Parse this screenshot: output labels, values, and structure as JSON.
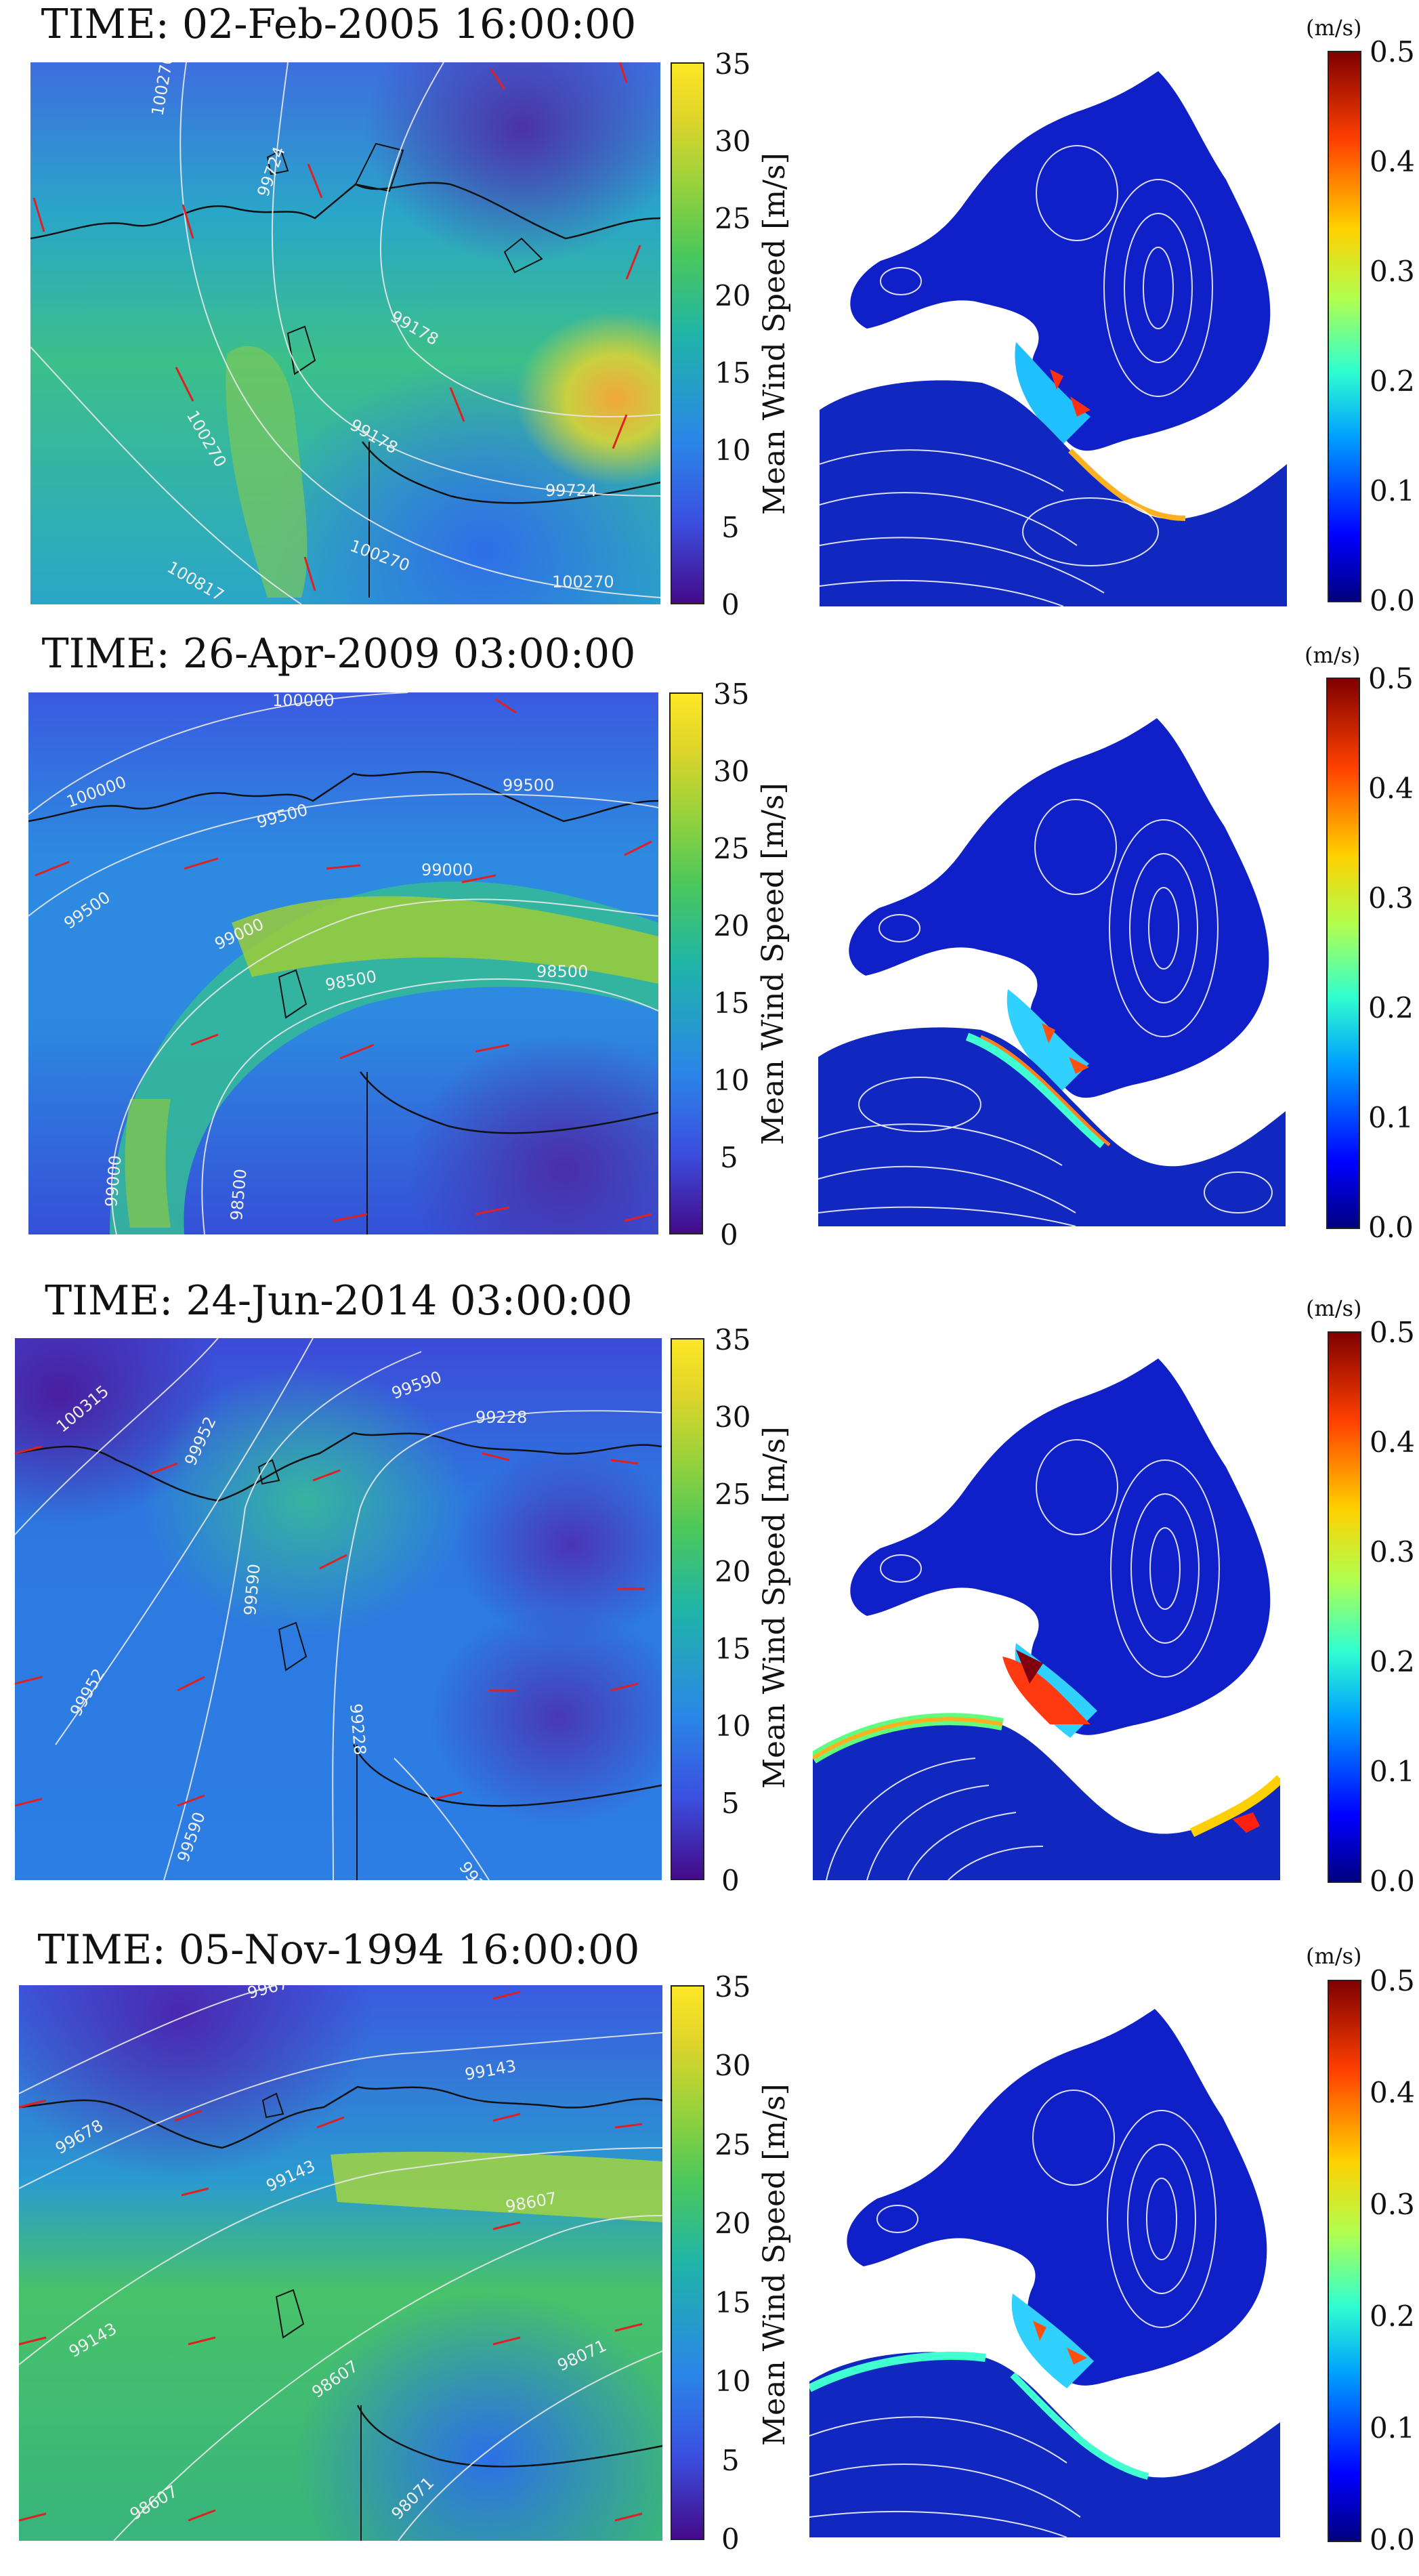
{
  "panels": [
    {
      "time_label": "TIME: 02-Feb-2005 16:00:00",
      "wind_colorbar_label": "Mean Wind Speed [m/s]",
      "current_unit": "(m/s)",
      "isobars": [
        "100270",
        "99724",
        "99178",
        "99724",
        "100270",
        "100817",
        "100270",
        "99724",
        "99178"
      ],
      "current_pattern": "calm"
    },
    {
      "time_label": "TIME: 26-Apr-2009 03:00:00",
      "wind_colorbar_label": "Mean Wind Speed [m/s]",
      "current_unit": "(m/s)",
      "isobars": [
        "100000",
        "100000",
        "99500",
        "99500",
        "99000",
        "99000",
        "98500",
        "98500",
        "99500",
        "99000",
        "98500"
      ],
      "current_pattern": "moderate"
    },
    {
      "time_label": "TIME: 24-Jun-2014 03:00:00",
      "wind_colorbar_label": "Mean Wind Speed [m/s]",
      "current_unit": "(m/s)",
      "isobars": [
        "100315",
        "99952",
        "99590",
        "99228",
        "99590",
        "99228",
        "99952",
        "99590",
        "99228"
      ],
      "current_pattern": "strong"
    },
    {
      "time_label": "TIME: 05-Nov-1994 16:00:00",
      "wind_colorbar_label": "Mean Wind Speed [m/s]",
      "current_unit": "(m/s)",
      "isobars": [
        "99678",
        "99143",
        "99143",
        "98607",
        "99143",
        "98607",
        "98071",
        "98607",
        "98071",
        "9967"
      ],
      "current_pattern": "moderate"
    }
  ],
  "wind_ticks": [
    "35",
    "30",
    "25",
    "20",
    "15",
    "10",
    "5",
    "0"
  ],
  "current_ticks": [
    "0.5",
    "0.4",
    "0.3",
    "0.2",
    "0.1",
    "0.0"
  ],
  "colors": {
    "wind_scale": [
      "#440a8a",
      "#3b4fe0",
      "#2a86e8",
      "#1fb5a8",
      "#4cc85a",
      "#9ad23b",
      "#e0d52a",
      "#fde725"
    ],
    "current_scale": [
      "#00007f",
      "#0000ff",
      "#00a0ff",
      "#30ffd0",
      "#b0ff50",
      "#ffd000",
      "#ff4000",
      "#800000"
    ],
    "wind_arrow": "#e02020",
    "coastline": "#111111"
  }
}
